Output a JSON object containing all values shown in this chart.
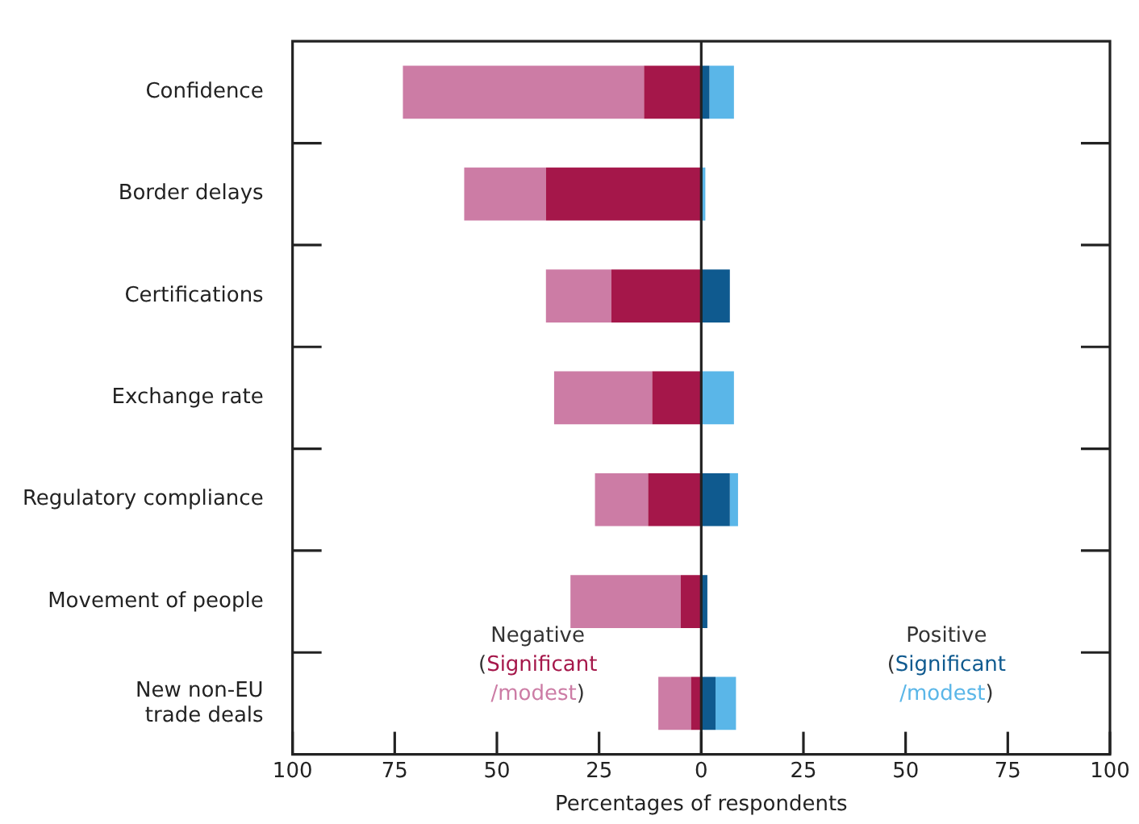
{
  "chart_data": {
    "type": "bar",
    "orientation": "horizontal",
    "stacked": true,
    "categories": [
      "Confidence",
      "Border delays",
      "Certifications",
      "Exchange rate",
      "Regulatory compliance",
      "Movement of people",
      "New non-EU trade deals"
    ],
    "series": [
      {
        "color": "#a5174a",
        "values": [
          -14,
          -38,
          -22,
          -12,
          -13,
          -5,
          -2.5
        ]
      },
      {
        "color": "#cc7ca5",
        "values": [
          -59,
          -20,
          -16,
          -24,
          -13,
          -27,
          -8
        ]
      },
      {
        "color": "#0f5a8f",
        "values": [
          2,
          0,
          7,
          0,
          7,
          1.5,
          3.5
        ]
      },
      {
        "color": "#5ab6e8",
        "values": [
          6,
          1,
          0,
          8,
          2,
          0,
          5
        ]
      }
    ],
    "xlim": [
      -100,
      100
    ],
    "xticks": [
      {
        "value": -100,
        "label": "100"
      },
      {
        "value": -75,
        "label": "75"
      },
      {
        "value": -50,
        "label": "50"
      },
      {
        "value": -25,
        "label": "25"
      },
      0,
      25,
      50,
      75,
      100
    ],
    "xlabel": "Percentages of respondents",
    "annotations": [
      "Negative",
      "(Significant /modest)",
      "Positive",
      "(Significant /modest)"
    ],
    "ref_lines": [
      {
        "axis": "x",
        "value": 0
      }
    ]
  }
}
